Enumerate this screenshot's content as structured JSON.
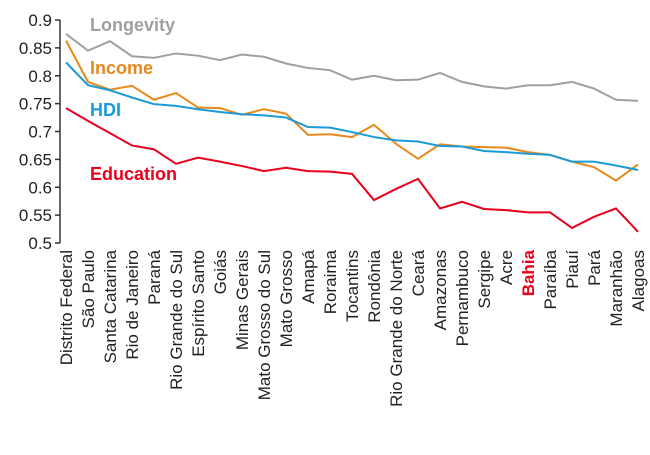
{
  "chart_data": {
    "type": "line",
    "categories": [
      "Distrito Federal",
      "São Paulo",
      "Santa Catarina",
      "Rio de Janeiro",
      "Paraná",
      "Rio Grande do Sul",
      "Espírito Santo",
      "Goiás",
      "Minas Gerais",
      "Mato Grosso do Sul",
      "Mato Grosso",
      "Amapá",
      "Roraima",
      "Tocantins",
      "Rondônia",
      "Rio Grande do Norte",
      "Ceará",
      "Amazonas",
      "Pernambuco",
      "Sergipe",
      "Acre",
      "Bahia",
      "Paraíba",
      "Piauí",
      "Pará",
      "Maranhão",
      "Alagoas"
    ],
    "highlight": {
      "category_index": 21,
      "color": "#e8001c"
    },
    "series": [
      {
        "name": "Longevity",
        "color": "#a0a0a0",
        "values": [
          0.875,
          0.845,
          0.862,
          0.835,
          0.832,
          0.84,
          0.836,
          0.828,
          0.838,
          0.834,
          0.822,
          0.814,
          0.81,
          0.793,
          0.8,
          0.792,
          0.793,
          0.805,
          0.789,
          0.781,
          0.777,
          0.783,
          0.783,
          0.789,
          0.777,
          0.757,
          0.755
        ]
      },
      {
        "name": "Income",
        "color": "#e8891c",
        "values": [
          0.863,
          0.789,
          0.775,
          0.782,
          0.757,
          0.769,
          0.743,
          0.742,
          0.73,
          0.74,
          0.732,
          0.694,
          0.695,
          0.69,
          0.712,
          0.678,
          0.651,
          0.677,
          0.673,
          0.672,
          0.671,
          0.663,
          0.658,
          0.646,
          0.636,
          0.612,
          0.641
        ]
      },
      {
        "name": "HDI",
        "color": "#1a9bd7",
        "values": [
          0.824,
          0.783,
          0.774,
          0.761,
          0.749,
          0.746,
          0.74,
          0.735,
          0.731,
          0.729,
          0.725,
          0.708,
          0.707,
          0.699,
          0.69,
          0.684,
          0.682,
          0.674,
          0.673,
          0.665,
          0.663,
          0.66,
          0.658,
          0.646,
          0.646,
          0.639,
          0.631
        ]
      },
      {
        "name": "Education",
        "color": "#e8001c",
        "values": [
          0.742,
          0.719,
          0.697,
          0.675,
          0.668,
          0.642,
          0.653,
          0.646,
          0.638,
          0.629,
          0.635,
          0.629,
          0.628,
          0.624,
          0.577,
          0.597,
          0.615,
          0.562,
          0.574,
          0.561,
          0.559,
          0.555,
          0.555,
          0.527,
          0.547,
          0.562,
          0.52
        ]
      }
    ],
    "ylim": [
      0.5,
      0.9
    ],
    "yticks": [
      0.5,
      0.55,
      0.6,
      0.65,
      0.7,
      0.75,
      0.8,
      0.85,
      0.9
    ]
  }
}
